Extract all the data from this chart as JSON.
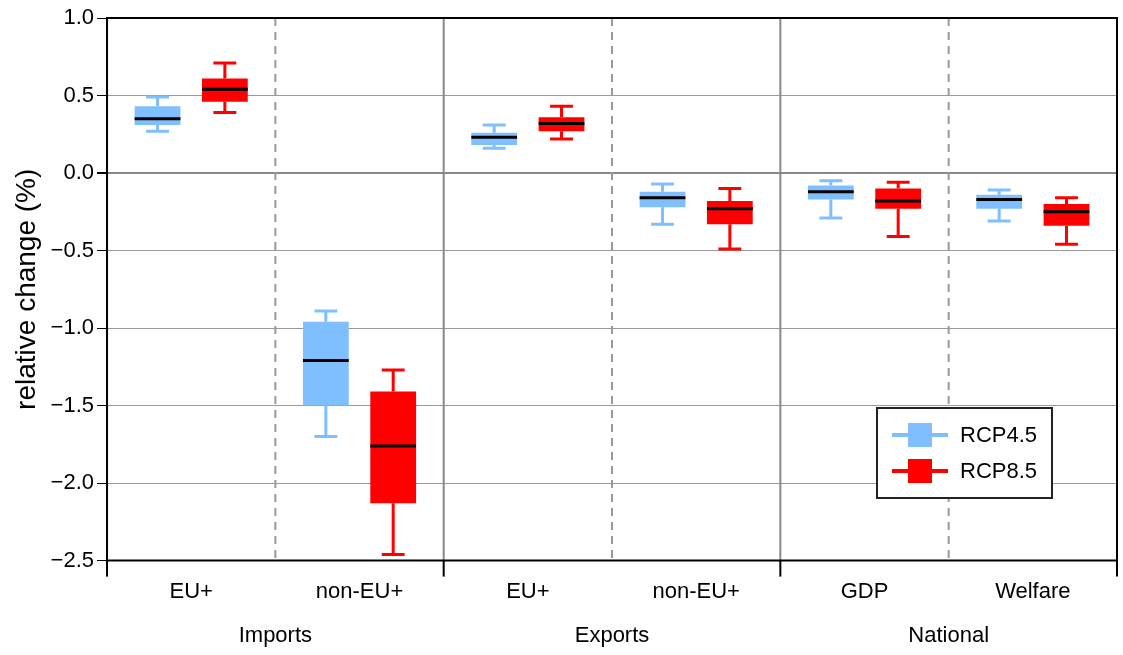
{
  "chart_data": {
    "type": "box",
    "ylabel": "relative change (%)",
    "categories": [
      "EU+",
      "non-EU+",
      "EU+",
      "non-EU+",
      "GDP",
      "Welfare"
    ],
    "annotations": [
      "Imports",
      "Exports",
      "National"
    ],
    "ylim": [
      -2.5,
      1.0
    ],
    "yticks": [
      {
        "value": -2.5,
        "label": "−2.5"
      },
      {
        "value": -2,
        "label": "−2.0"
      },
      {
        "value": -1.5,
        "label": "−1.5"
      },
      {
        "value": -1,
        "label": "−1.0"
      },
      {
        "value": -0.5,
        "label": "−0.5"
      },
      {
        "value": 0,
        "label": "0.0"
      },
      {
        "value": 0.5,
        "label": "0.5"
      },
      {
        "value": 1,
        "label": "1.0"
      }
    ],
    "grid": true,
    "legend": "bottom right",
    "series": [
      {
        "name": "RCP4.5",
        "color": "#7fbfff",
        "boxes": [
          {
            "low": 0.27,
            "q1": 0.31,
            "median": 0.35,
            "q3": 0.43,
            "high": 0.49
          },
          {
            "low": -1.7,
            "q1": -1.5,
            "median": -1.21,
            "q3": -0.96,
            "high": -0.89
          },
          {
            "low": 0.16,
            "q1": 0.18,
            "median": 0.23,
            "q3": 0.26,
            "high": 0.31
          },
          {
            "low": -0.33,
            "q1": -0.22,
            "median": -0.16,
            "q3": -0.12,
            "high": -0.07
          },
          {
            "low": -0.29,
            "q1": -0.17,
            "median": -0.12,
            "q3": -0.08,
            "high": -0.05
          },
          {
            "low": -0.31,
            "q1": -0.23,
            "median": -0.17,
            "q3": -0.14,
            "high": -0.11
          }
        ]
      },
      {
        "name": "RCP8.5",
        "color": "#ff0000",
        "boxes": [
          {
            "low": 0.39,
            "q1": 0.46,
            "median": 0.54,
            "q3": 0.61,
            "high": 0.71
          },
          {
            "low": -2.46,
            "q1": -2.13,
            "median": -1.76,
            "q3": -1.41,
            "high": -1.27
          },
          {
            "low": 0.22,
            "q1": 0.27,
            "median": 0.32,
            "q3": 0.36,
            "high": 0.43
          },
          {
            "low": -0.49,
            "q1": -0.33,
            "median": -0.23,
            "q3": -0.18,
            "high": -0.1
          },
          {
            "low": -0.41,
            "q1": -0.23,
            "median": -0.18,
            "q3": -0.1,
            "high": -0.06
          },
          {
            "low": -0.46,
            "q1": -0.34,
            "median": -0.25,
            "q3": -0.2,
            "high": -0.16
          }
        ]
      }
    ]
  }
}
